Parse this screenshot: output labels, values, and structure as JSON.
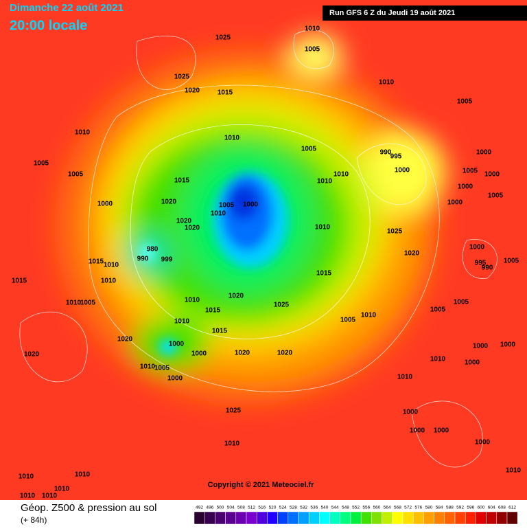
{
  "header": {
    "date": "Dimanche 22 août 2021",
    "time": "20:00 locale",
    "run": "Run GFS 6 Z du Jeudi 19 août 2021"
  },
  "copyright": "Copyright © 2021 Meteociel.fr",
  "footer": {
    "title": "Géop. Z500 & pression au sol",
    "subtitle": "(+ 84h)"
  },
  "isobar_labels": [
    1010,
    1005,
    1025,
    1025,
    1020,
    1015,
    1010,
    1005,
    1010,
    1010,
    1005,
    990,
    995,
    1000,
    1005,
    1005,
    1015,
    1010,
    1010,
    1000,
    1005,
    1000,
    1000,
    1020,
    1005,
    1000,
    1010,
    1000,
    1000,
    1005,
    1020,
    1020,
    1010,
    1025,
    980,
    990,
    999,
    1020,
    1000,
    995,
    990,
    1005,
    1015,
    1010,
    1015,
    1015,
    1010,
    1020,
    1010,
    1025,
    1015,
    1005,
    1010,
    1005,
    1010,
    1005,
    1005,
    1010,
    1015,
    1020,
    1000,
    1000,
    1020,
    1020,
    1000,
    1000,
    1010,
    1000,
    1020,
    1010,
    1005,
    1000,
    1010,
    1025,
    1000,
    1000,
    1000,
    1000,
    1010,
    1010,
    1010,
    1010,
    1010,
    1010,
    1010
  ],
  "legend": {
    "values": [
      492,
      496,
      500,
      504,
      508,
      512,
      516,
      520,
      524,
      528,
      532,
      536,
      540,
      544,
      548,
      552,
      556,
      560,
      564,
      568,
      572,
      576,
      580,
      584,
      588,
      592,
      596,
      600,
      604,
      608,
      612
    ],
    "colors": [
      "#2a0030",
      "#3a0050",
      "#4b0070",
      "#5a0090",
      "#6a00b0",
      "#7a00d0",
      "#5000e0",
      "#2000ff",
      "#0040ff",
      "#0070ff",
      "#00a0ff",
      "#00d0ff",
      "#00ffff",
      "#00ffc0",
      "#00ff80",
      "#00f040",
      "#40e000",
      "#80e000",
      "#c0f000",
      "#ffff00",
      "#ffe000",
      "#ffc000",
      "#ffa000",
      "#ff8000",
      "#ff6000",
      "#ff4000",
      "#ff2000",
      "#e00000",
      "#c00000",
      "#900000",
      "#600000"
    ]
  }
}
